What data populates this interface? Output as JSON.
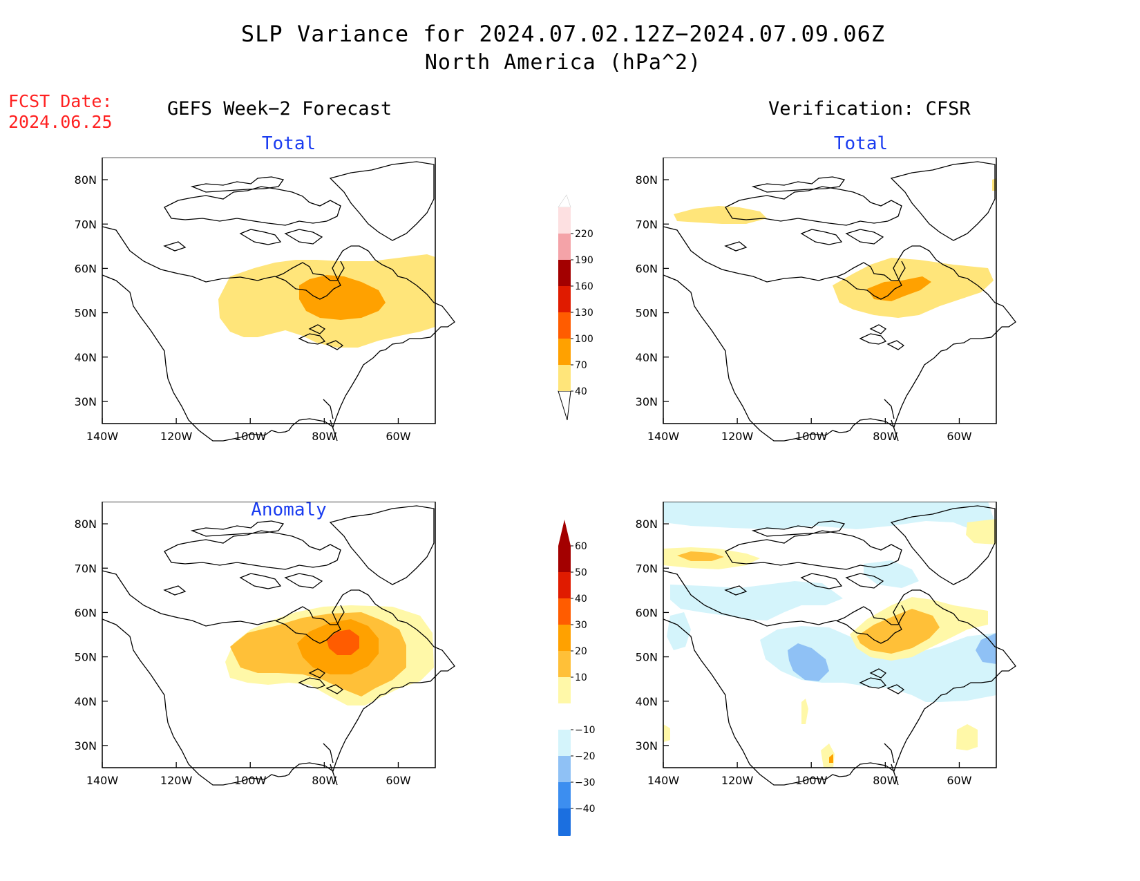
{
  "title": "SLP Variance for 2024.07.02.12Z−2024.07.09.06Z",
  "subtitle": "North America (hPa^2)",
  "fcst_label": "FCST Date:",
  "fcst_date": "2024.06.25",
  "left_heading": "GEFS Week−2 Forecast",
  "right_heading": "Verification: CFSR",
  "panel_titles": {
    "total": "Total",
    "anomaly": "Anomaly"
  },
  "lat_ticks": [
    "80N",
    "70N",
    "60N",
    "50N",
    "40N",
    "30N"
  ],
  "lon_ticks": [
    "140W",
    "120W",
    "100W",
    "80W",
    "60W"
  ],
  "total_colorbar": {
    "labels": [
      "40",
      "70",
      "100",
      "130",
      "160",
      "190",
      "220"
    ],
    "colors": [
      "#ffe57a",
      "#ffa100",
      "#ff5c00",
      "#e01b00",
      "#a30000",
      "#f4a3a8",
      "#fde0e1"
    ]
  },
  "anomaly_colorbar": {
    "labels": [
      "-40",
      "-30",
      "-20",
      "-10",
      "10",
      "20",
      "30",
      "40",
      "50",
      "60"
    ],
    "colors": [
      "#1b6fe0",
      "#3c8ef0",
      "#8fc1f5",
      "#d4f4fb",
      "#ffffff",
      "#fff8a8",
      "#ffc038",
      "#ffa100",
      "#ff5c00",
      "#e01b00",
      "#a30000"
    ]
  },
  "chart_data": [
    {
      "type": "heatmap",
      "panel": "GEFS Week-2 Forecast - Total",
      "ylabel": "",
      "xlabel": "",
      "xlim_deg_lon": [
        -140,
        -50
      ],
      "ylim_deg_lat": [
        25,
        85
      ],
      "features": [
        {
          "level": "40-70",
          "center_lon": -80,
          "center_lat": 52
        },
        {
          "level": "70-100",
          "center_lon": -77,
          "center_lat": 54
        }
      ]
    },
    {
      "type": "heatmap",
      "panel": "Verification: CFSR - Total",
      "xlim_deg_lon": [
        -140,
        -50
      ],
      "ylim_deg_lat": [
        25,
        85
      ],
      "features": [
        {
          "level": "40-70",
          "center_lon": -75,
          "center_lat": 55
        },
        {
          "level": "70-100",
          "center_lon": -78,
          "center_lat": 54
        }
      ]
    },
    {
      "type": "heatmap",
      "panel": "GEFS Week-2 Forecast - Anomaly",
      "xlim_deg_lon": [
        -140,
        -50
      ],
      "ylim_deg_lat": [
        25,
        85
      ],
      "features": [
        {
          "level": "10-20",
          "center_lon": -82,
          "center_lat": 50
        },
        {
          "level": "20-30",
          "center_lon": -79,
          "center_lat": 52
        },
        {
          "level": "30-40",
          "center_lon": -78,
          "center_lat": 53
        },
        {
          "level": "40-50",
          "center_lon": -76,
          "center_lat": 54
        }
      ]
    },
    {
      "type": "heatmap",
      "panel": "Verification: CFSR - Anomaly",
      "xlim_deg_lon": [
        -140,
        -50
      ],
      "ylim_deg_lat": [
        25,
        85
      ],
      "features": [
        {
          "level": "20-30",
          "center_lon": -76,
          "center_lat": 55
        },
        {
          "level": "-20 to -10",
          "center_lon": -98,
          "center_lat": 48
        },
        {
          "level": "10-20",
          "center_lon": -133,
          "center_lat": 72
        }
      ]
    }
  ]
}
